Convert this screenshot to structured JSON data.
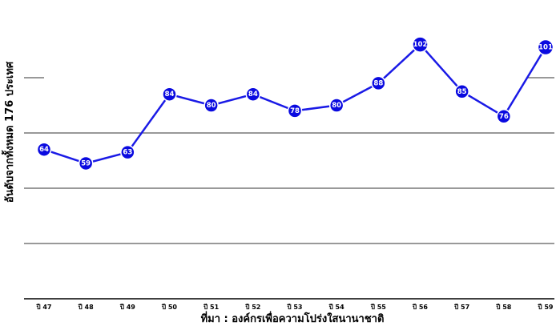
{
  "chart_data": {
    "type": "line",
    "categories": [
      "ปี 47",
      "ปี 48",
      "ปี 49",
      "ปี 50",
      "ปี 51",
      "ปี 52",
      "ปี 53",
      "ปี 54",
      "ปี 55",
      "ปี 56",
      "ปี 57",
      "ปี 58",
      "ปี 59"
    ],
    "series": [
      {
        "values": [
          64,
          59,
          63,
          84,
          80,
          84,
          78,
          80,
          88,
          102,
          85,
          76,
          101
        ]
      }
    ],
    "data_labels": [
      "64",
      "59",
      "63",
      "84",
      "80",
      "84",
      "78",
      "80",
      "88",
      "102",
      "85",
      "76",
      "101"
    ],
    "xlabel": "ที่มา : องค์กรเพื่อความโปร่งใสนานาชาติ",
    "ylabel": "อันดับจากทั้งหมด 176 ประเทศ",
    "ylim": [
      10,
      110
    ],
    "grid": true,
    "colors": {
      "line": "#1a1ae6",
      "marker": "#0a0ae0",
      "label": "#ffffff"
    }
  }
}
